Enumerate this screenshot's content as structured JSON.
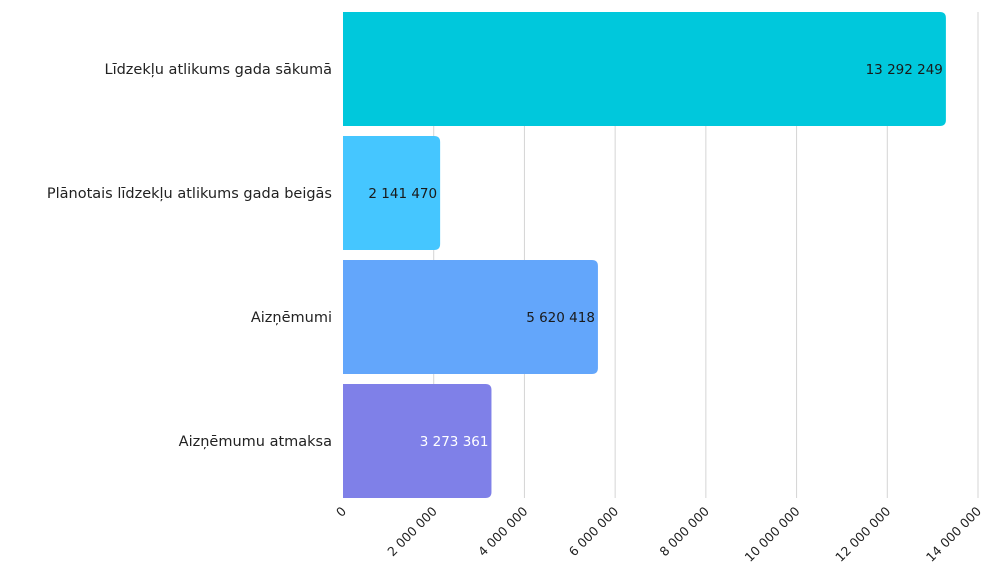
{
  "chart_data": {
    "type": "bar",
    "orientation": "horizontal",
    "title": "",
    "xlabel": "",
    "ylabel": "",
    "categories": [
      "Līdzekļu atlikums gada sākumā",
      "Plānotais līdzekļu atlikums gada beigās",
      "Aizņēmumi",
      "Aizņēmumu atmaksa"
    ],
    "values": [
      13292249,
      2141470,
      5620418,
      3273361
    ],
    "value_labels": [
      "13 292 249",
      "2 141 470",
      "5 620 418",
      "3 273 361"
    ],
    "bar_colors": [
      "#00c8dc",
      "#45c6ff",
      "#63a6fb",
      "#7f80e8"
    ],
    "label_colors": [
      "#1a1a1a",
      "#1a1a1a",
      "#1a1a1a",
      "#ffffff"
    ],
    "xlim": [
      0,
      14000000
    ],
    "ticks": [
      0,
      2000000,
      4000000,
      6000000,
      8000000,
      10000000,
      12000000,
      14000000
    ],
    "tick_labels": [
      "0",
      "2 000 000",
      "4 000 000",
      "6 000 000",
      "8 000 000",
      "10 000 000",
      "12 000 000",
      "14 000 000"
    ],
    "grid": true,
    "legend": "none"
  }
}
